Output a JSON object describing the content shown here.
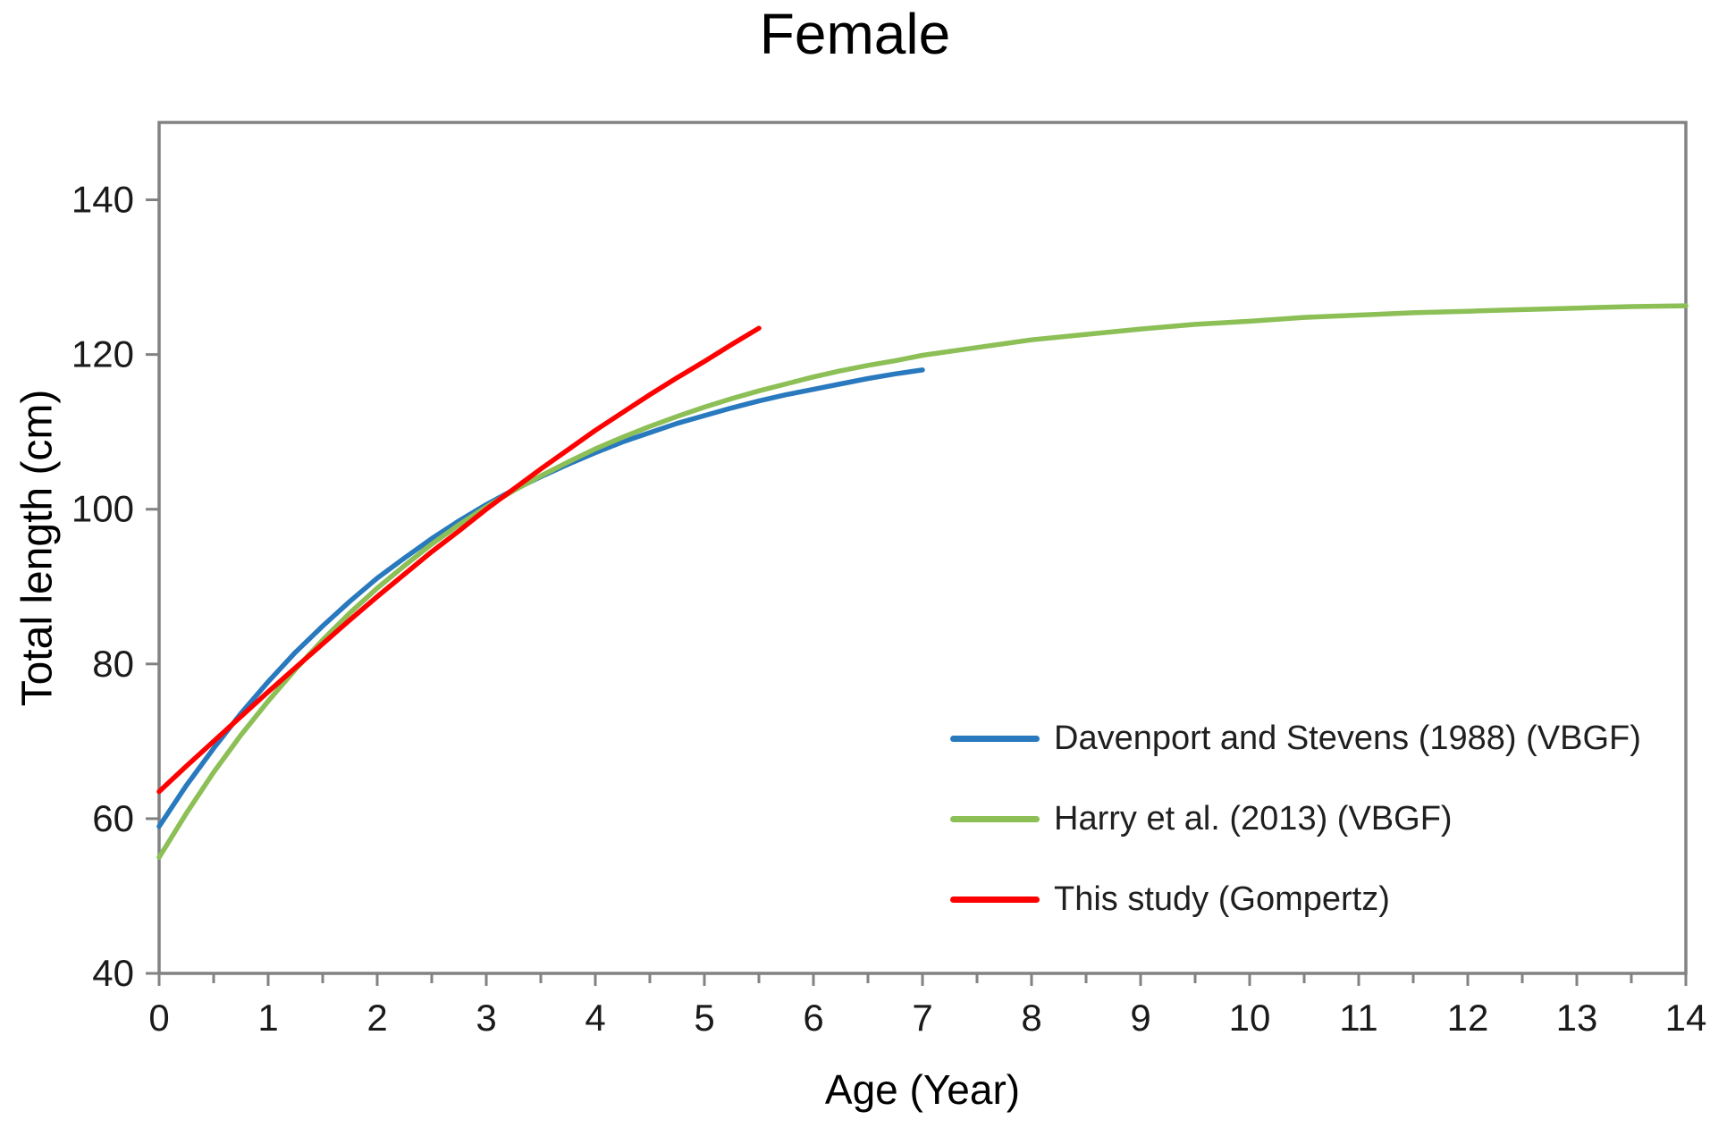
{
  "title": "Female",
  "y_axis": {
    "label": "Total length (cm)"
  },
  "x_axis": {
    "label": "Age (Year)"
  },
  "colors": {
    "axis_line": "#828282",
    "tick_text": "#1a1a1a",
    "series_blue": "#2879BE",
    "series_green": "#8CBF55",
    "series_red": "#FF0000"
  },
  "chart_data": {
    "type": "line",
    "title": "Female",
    "xlabel": "Age (Year)",
    "ylabel": "Total length (cm)",
    "xlim": [
      0,
      14
    ],
    "ylim": [
      40,
      150
    ],
    "x_major_ticks": [
      0,
      1,
      2,
      3,
      4,
      5,
      6,
      7,
      8,
      9,
      10,
      11,
      12,
      13,
      14
    ],
    "x_minor_tick_step": 0.5,
    "y_ticks": [
      40,
      60,
      80,
      100,
      120,
      140
    ],
    "grid": false,
    "legend_position": "inside lower right",
    "series": [
      {
        "name": "Davenport and Stevens (1988) (VBGF)",
        "color": "#2879BE",
        "model": "von Bertalanffy",
        "points": [
          [
            0,
            59.0
          ],
          [
            0.25,
            64.3
          ],
          [
            0.5,
            69.1
          ],
          [
            0.75,
            73.6
          ],
          [
            1,
            77.7
          ],
          [
            1.25,
            81.5
          ],
          [
            1.5,
            84.9
          ],
          [
            1.75,
            88.1
          ],
          [
            2,
            91.1
          ],
          [
            2.25,
            93.7
          ],
          [
            2.5,
            96.2
          ],
          [
            2.75,
            98.5
          ],
          [
            3,
            100.6
          ],
          [
            3.25,
            102.5
          ],
          [
            3.5,
            104.2
          ],
          [
            3.75,
            105.8
          ],
          [
            4,
            107.3
          ],
          [
            4.25,
            108.7
          ],
          [
            4.5,
            109.9
          ],
          [
            4.75,
            111.1
          ],
          [
            5,
            112.1
          ],
          [
            5.25,
            113.1
          ],
          [
            5.5,
            114.0
          ],
          [
            5.75,
            114.8
          ],
          [
            6,
            115.5
          ],
          [
            6.25,
            116.2
          ],
          [
            6.5,
            116.9
          ],
          [
            6.75,
            117.5
          ],
          [
            7,
            118.0
          ]
        ]
      },
      {
        "name": "Harry et al. (2013) (VBGF)",
        "color": "#8CBF55",
        "model": "von Bertalanffy",
        "points": [
          [
            0,
            55.0
          ],
          [
            0.25,
            60.7
          ],
          [
            0.5,
            66.0
          ],
          [
            0.75,
            70.8
          ],
          [
            1,
            75.2
          ],
          [
            1.25,
            79.3
          ],
          [
            1.5,
            83.1
          ],
          [
            1.75,
            86.6
          ],
          [
            2,
            89.8
          ],
          [
            2.25,
            92.7
          ],
          [
            2.5,
            95.5
          ],
          [
            2.75,
            98.0
          ],
          [
            3,
            100.3
          ],
          [
            3.25,
            102.4
          ],
          [
            3.5,
            104.3
          ],
          [
            3.75,
            106.1
          ],
          [
            4,
            107.8
          ],
          [
            4.25,
            109.3
          ],
          [
            4.5,
            110.7
          ],
          [
            4.75,
            112.0
          ],
          [
            5,
            113.2
          ],
          [
            5.25,
            114.3
          ],
          [
            5.5,
            115.3
          ],
          [
            5.75,
            116.2
          ],
          [
            6,
            117.1
          ],
          [
            6.25,
            117.9
          ],
          [
            6.5,
            118.6
          ],
          [
            6.75,
            119.2
          ],
          [
            7,
            119.9
          ],
          [
            7.5,
            120.9
          ],
          [
            8,
            121.9
          ],
          [
            8.5,
            122.6
          ],
          [
            9,
            123.3
          ],
          [
            9.5,
            123.9
          ],
          [
            10,
            124.3
          ],
          [
            10.5,
            124.8
          ],
          [
            11,
            125.1
          ],
          [
            11.5,
            125.4
          ],
          [
            12,
            125.6
          ],
          [
            12.5,
            125.8
          ],
          [
            13,
            126.0
          ],
          [
            13.5,
            126.2
          ],
          [
            14,
            126.3
          ]
        ]
      },
      {
        "name": "This study (Gompertz)",
        "color": "#FF0000",
        "model": "Gompertz",
        "points": [
          [
            0,
            63.5
          ],
          [
            0.25,
            66.8
          ],
          [
            0.5,
            70.0
          ],
          [
            0.75,
            73.2
          ],
          [
            1,
            76.4
          ],
          [
            1.25,
            79.5
          ],
          [
            1.5,
            82.6
          ],
          [
            1.75,
            85.7
          ],
          [
            2,
            88.7
          ],
          [
            2.25,
            91.6
          ],
          [
            2.5,
            94.5
          ],
          [
            2.75,
            97.2
          ],
          [
            3,
            100.0
          ],
          [
            3.25,
            102.6
          ],
          [
            3.5,
            105.2
          ],
          [
            3.75,
            107.7
          ],
          [
            4,
            110.2
          ],
          [
            4.25,
            112.5
          ],
          [
            4.5,
            114.8
          ],
          [
            4.75,
            117.0
          ],
          [
            5,
            119.1
          ],
          [
            5.25,
            121.3
          ],
          [
            5.5,
            123.4
          ]
        ]
      }
    ]
  }
}
